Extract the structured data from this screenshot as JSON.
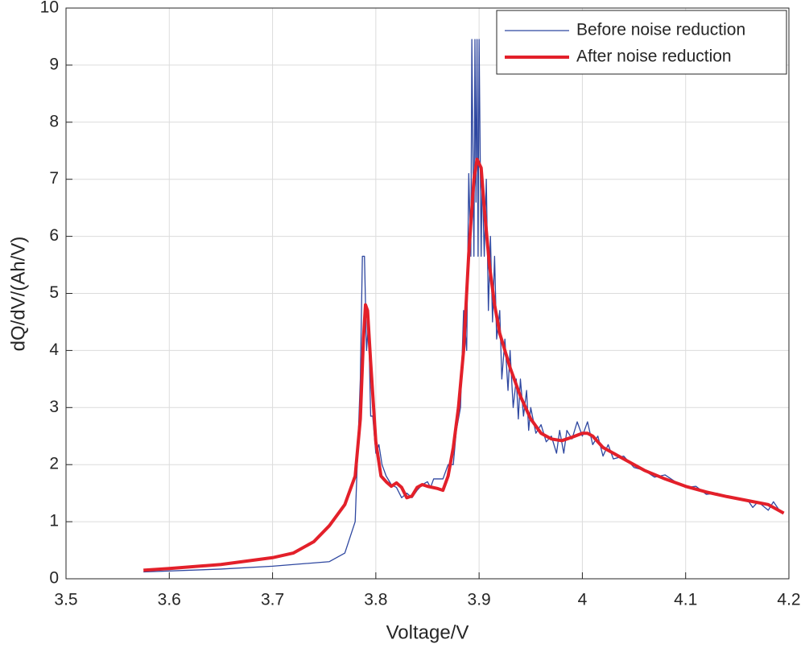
{
  "chart_data": {
    "type": "line",
    "xlabel": "Voltage/V",
    "ylabel": "dQ/dV/(Ah/V)",
    "xlim": [
      3.5,
      4.2
    ],
    "xticks": [
      3.5,
      3.6,
      3.7,
      3.8,
      3.9,
      4,
      4.1,
      4.2
    ],
    "ylim": [
      0,
      10
    ],
    "yticks": [
      0,
      1,
      2,
      3,
      4,
      5,
      6,
      7,
      8,
      9,
      10
    ],
    "grid": true,
    "legend": "top-right",
    "series": [
      {
        "name": "Before noise reduction",
        "color": "#2e47a0",
        "width": 1.3,
        "x": [
          3.575,
          3.65,
          3.7,
          3.755,
          3.77,
          3.78,
          3.785,
          3.787,
          3.789,
          3.791,
          3.793,
          3.795,
          3.797,
          3.8,
          3.803,
          3.806,
          3.81,
          3.815,
          3.82,
          3.825,
          3.83,
          3.835,
          3.84,
          3.845,
          3.85,
          3.853,
          3.856,
          3.86,
          3.865,
          3.87,
          3.875,
          3.878,
          3.882,
          3.885,
          3.888,
          3.89,
          3.892,
          3.893,
          3.895,
          3.896,
          3.897,
          3.898,
          3.899,
          3.9,
          3.902,
          3.903,
          3.905,
          3.907,
          3.909,
          3.911,
          3.913,
          3.915,
          3.917,
          3.92,
          3.922,
          3.925,
          3.928,
          3.93,
          3.933,
          3.936,
          3.938,
          3.94,
          3.943,
          3.946,
          3.948,
          3.95,
          3.955,
          3.96,
          3.965,
          3.97,
          3.975,
          3.978,
          3.982,
          3.985,
          3.99,
          3.995,
          4.0,
          4.005,
          4.01,
          4.015,
          4.02,
          4.025,
          4.03,
          4.04,
          4.05,
          4.06,
          4.07,
          4.08,
          4.09,
          4.1,
          4.11,
          4.12,
          4.13,
          4.14,
          4.15,
          4.16,
          4.165,
          4.17,
          4.18,
          4.185,
          4.19,
          4.195
        ],
        "values": [
          0.12,
          0.17,
          0.22,
          0.3,
          0.45,
          1.0,
          3.5,
          5.65,
          5.65,
          4.0,
          4.5,
          2.85,
          2.85,
          2.2,
          2.35,
          2.0,
          1.8,
          1.65,
          1.6,
          1.42,
          1.5,
          1.42,
          1.55,
          1.65,
          1.7,
          1.6,
          1.75,
          1.75,
          1.75,
          2.0,
          2.0,
          2.6,
          3.0,
          4.7,
          4.0,
          7.1,
          5.65,
          9.45,
          5.65,
          9.45,
          6.6,
          9.45,
          5.65,
          9.45,
          5.65,
          7.1,
          5.65,
          7.0,
          4.7,
          6.0,
          4.5,
          5.65,
          4.2,
          4.7,
          3.5,
          4.2,
          3.3,
          4.0,
          3.0,
          3.5,
          2.8,
          3.5,
          2.85,
          3.3,
          2.6,
          3.0,
          2.55,
          2.7,
          2.4,
          2.5,
          2.2,
          2.6,
          2.2,
          2.6,
          2.45,
          2.75,
          2.5,
          2.75,
          2.35,
          2.5,
          2.15,
          2.35,
          2.1,
          2.15,
          1.95,
          1.9,
          1.78,
          1.82,
          1.7,
          1.6,
          1.62,
          1.48,
          1.5,
          1.45,
          1.4,
          1.38,
          1.25,
          1.35,
          1.2,
          1.35,
          1.22,
          1.15
        ]
      },
      {
        "name": "After noise reduction",
        "color": "#e3202a",
        "width": 4,
        "x": [
          3.575,
          3.6,
          3.65,
          3.7,
          3.72,
          3.74,
          3.755,
          3.77,
          3.78,
          3.785,
          3.788,
          3.79,
          3.792,
          3.795,
          3.8,
          3.805,
          3.81,
          3.815,
          3.82,
          3.825,
          3.83,
          3.835,
          3.84,
          3.845,
          3.85,
          3.86,
          3.865,
          3.87,
          3.875,
          3.88,
          3.885,
          3.89,
          3.895,
          3.898,
          3.902,
          3.905,
          3.91,
          3.915,
          3.92,
          3.93,
          3.94,
          3.95,
          3.96,
          3.97,
          3.98,
          3.99,
          4.0,
          4.005,
          4.01,
          4.02,
          4.04,
          4.06,
          4.08,
          4.1,
          4.12,
          4.14,
          4.16,
          4.18,
          4.195
        ],
        "values": [
          0.15,
          0.18,
          0.25,
          0.37,
          0.45,
          0.65,
          0.93,
          1.3,
          1.8,
          2.8,
          4.2,
          4.8,
          4.7,
          3.8,
          2.4,
          1.8,
          1.7,
          1.62,
          1.68,
          1.6,
          1.42,
          1.45,
          1.6,
          1.65,
          1.62,
          1.58,
          1.55,
          1.8,
          2.3,
          3.0,
          4.0,
          5.7,
          7.0,
          7.35,
          7.2,
          6.5,
          5.5,
          4.8,
          4.3,
          3.7,
          3.2,
          2.8,
          2.55,
          2.45,
          2.42,
          2.48,
          2.55,
          2.55,
          2.5,
          2.3,
          2.1,
          1.9,
          1.75,
          1.62,
          1.52,
          1.44,
          1.37,
          1.3,
          1.15
        ]
      }
    ]
  }
}
